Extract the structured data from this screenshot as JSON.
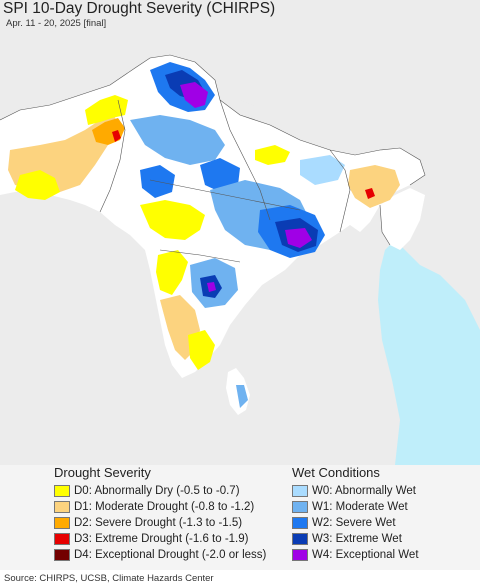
{
  "title": "SPI 10-Day Drought Severity (CHIRPS)",
  "subtitle": "Apr. 11 - 20, 2025 [final]",
  "colors": {
    "ocean": "#bfeefa",
    "land_outside": "#ececec",
    "land_normal": "#ffffff",
    "borders": "#555555"
  },
  "legend": {
    "drought": {
      "title": "Drought Severity",
      "items": [
        {
          "label": "D0: Abnormally Dry (-0.5 to -0.7)",
          "color": "#ffff00"
        },
        {
          "label": "D1: Moderate Drought (-0.8 to -1.2)",
          "color": "#fcd37f"
        },
        {
          "label": "D2: Severe Drought (-1.3 to -1.5)",
          "color": "#ffaa00"
        },
        {
          "label": "D3: Extreme Drought (-1.6 to -1.9)",
          "color": "#e60000"
        },
        {
          "label": "D4: Exceptional Drought (-2.0 or less)",
          "color": "#730000"
        }
      ]
    },
    "wet": {
      "title": "Wet Conditions",
      "items": [
        {
          "label": "W0: Abnormally Wet",
          "color": "#aadcff"
        },
        {
          "label": "W1: Moderate Wet",
          "color": "#6fb2f0"
        },
        {
          "label": "W2: Severe Wet",
          "color": "#1e78f0"
        },
        {
          "label": "W3: Extreme Wet",
          "color": "#0a3cb4"
        },
        {
          "label": "W4: Exceptional Wet",
          "color": "#a000e6"
        }
      ]
    }
  },
  "source": "Source: CHIRPS, UCSB, Climate Hazards Center"
}
